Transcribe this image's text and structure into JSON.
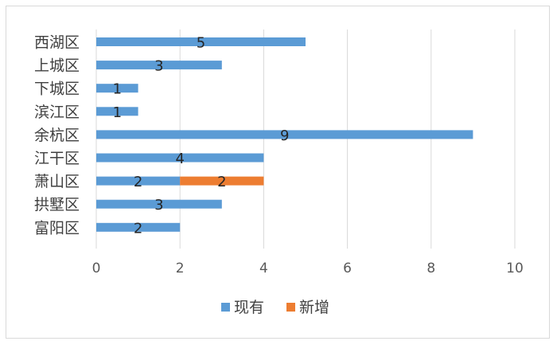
{
  "chart_data": {
    "type": "bar",
    "orientation": "horizontal",
    "stacked": true,
    "categories": [
      "西湖区",
      "上城区",
      "下城区",
      "滨江区",
      "余杭区",
      "江干区",
      "萧山区",
      "拱墅区",
      "富阳区"
    ],
    "series": [
      {
        "name": "现有",
        "color": "#5b9bd5",
        "values": [
          5,
          3,
          1,
          1,
          9,
          4,
          2,
          3,
          2
        ]
      },
      {
        "name": "新增",
        "color": "#ed7d31",
        "values": [
          0,
          0,
          0,
          0,
          0,
          0,
          2,
          0,
          0
        ]
      }
    ],
    "xlim": [
      0,
      10
    ],
    "xticks": [
      "0",
      "2",
      "4",
      "6",
      "8",
      "10"
    ],
    "grid": "vertical",
    "legend": "bottom",
    "title": "",
    "xlabel": "",
    "ylabel": ""
  }
}
